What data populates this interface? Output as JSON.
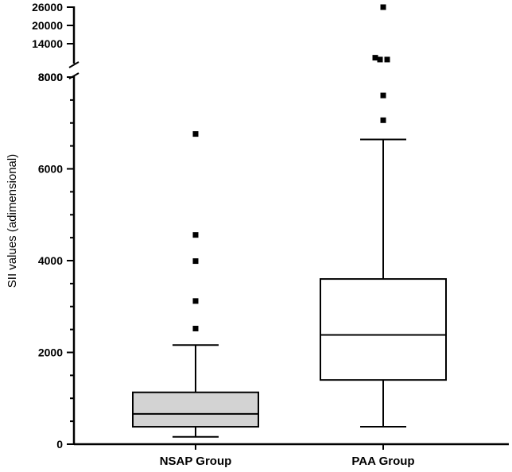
{
  "chart_data": {
    "type": "box",
    "title": "",
    "xlabel": "",
    "ylabel": "SII values (adimensional)",
    "y_axis": {
      "broken": true,
      "lower_range": [
        0,
        8000
      ],
      "upper_range": [
        8000,
        26000
      ],
      "lower_ticks": [
        "0",
        "2000",
        "4000",
        "6000",
        "8000"
      ],
      "upper_ticks": [
        "8000",
        "14000",
        "20000",
        "26000"
      ]
    },
    "categories": [
      "NSAP Group",
      "PAA Group"
    ],
    "series": [
      {
        "category": "NSAP Group",
        "fill": "#d3d3d3",
        "whisker_low": 160,
        "q1": 380,
        "median": 660,
        "q3": 1130,
        "whisker_high": 2160,
        "outliers": [
          2520,
          3120,
          3990,
          4560,
          6760
        ]
      },
      {
        "category": "PAA Group",
        "fill": "#ffffff",
        "whisker_low": 380,
        "q1": 1400,
        "median": 2380,
        "q3": 3600,
        "whisker_high": 6640,
        "outliers": [
          7060,
          7600,
          8800,
          8800,
          9400,
          26000
        ]
      }
    ]
  }
}
